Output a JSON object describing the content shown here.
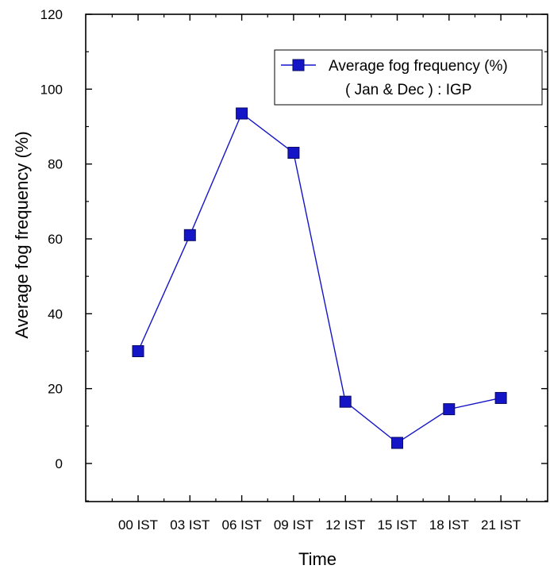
{
  "chart_data": {
    "type": "line",
    "categories": [
      "00 IST",
      "03 IST",
      "06 IST",
      "09 IST",
      "12 IST",
      "15 IST",
      "18 IST",
      "21 IST"
    ],
    "series": [
      {
        "name": "Average fog frequency (%)\n( Jan & Dec ) : IGP",
        "values": [
          30,
          61,
          93.5,
          83,
          16.5,
          5.5,
          14.5,
          17.5
        ],
        "color": "#1515c8",
        "marker": "square"
      }
    ],
    "xlabel": "Time",
    "ylabel": "Average fog frequency (%)",
    "ylim": [
      -10,
      120
    ],
    "yticks": [
      0,
      20,
      40,
      60,
      80,
      100,
      120
    ],
    "grid": false,
    "legend_position": "top-right"
  },
  "legend": {
    "line1": "Average fog frequency (%)",
    "line2": "( Jan & Dec ) : IGP"
  }
}
